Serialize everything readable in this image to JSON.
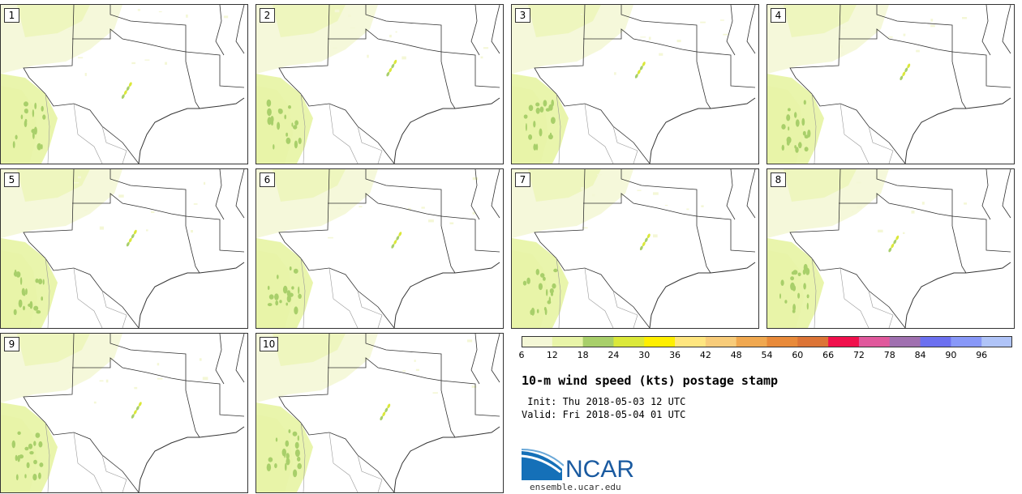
{
  "figure": {
    "title": "10-m wind speed (kts) postage stamp",
    "init": " Init: Thu 2018-05-03 12 UTC",
    "valid": "Valid: Fri 2018-05-04 01 UTC",
    "source_url": "ensemble.ucar.edu",
    "logo_text": "NCAR"
  },
  "members": [
    {
      "label": "1"
    },
    {
      "label": "2"
    },
    {
      "label": "3"
    },
    {
      "label": "4"
    },
    {
      "label": "5"
    },
    {
      "label": "6"
    },
    {
      "label": "7"
    },
    {
      "label": "8"
    },
    {
      "label": "9"
    },
    {
      "label": "10"
    }
  ],
  "colorbar": {
    "ticks": [
      "6",
      "12",
      "18",
      "24",
      "30",
      "36",
      "42",
      "48",
      "54",
      "60",
      "66",
      "72",
      "78",
      "84",
      "90",
      "96"
    ],
    "bins": [
      6,
      12,
      18,
      24,
      30,
      36,
      42,
      48,
      54,
      60,
      66,
      72,
      78,
      84,
      90,
      96,
      102
    ],
    "colors": [
      "#f4f7d6",
      "#e8f4a8",
      "#a8cf6a",
      "#dbe83a",
      "#ffef00",
      "#ffe680",
      "#f8cc7a",
      "#f0a850",
      "#e88a3a",
      "#dc7436",
      "#f0104c",
      "#e0589c",
      "#a070b0",
      "#6c70f0",
      "#8898f8",
      "#b0c4f8"
    ]
  }
}
